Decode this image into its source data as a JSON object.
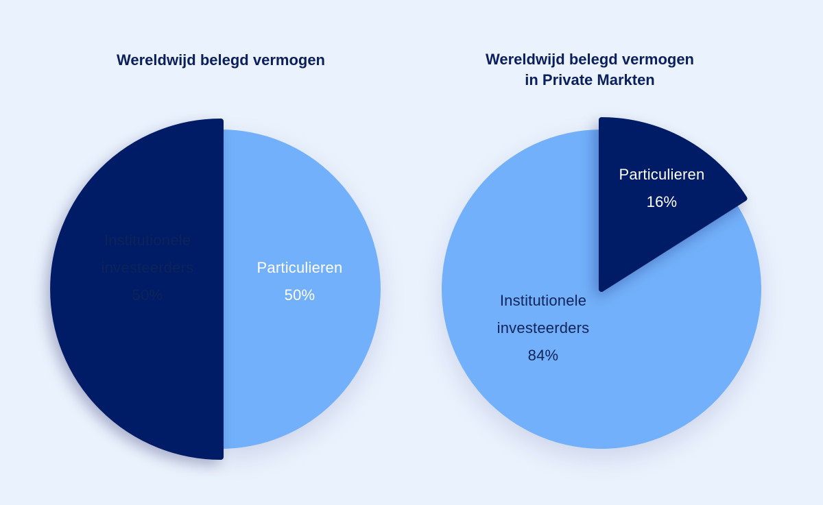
{
  "colors": {
    "background": "#eaf2fe",
    "title": "#0a1f5c",
    "institutioneel": "#72b0fb",
    "particulier": "#001d66",
    "label_dark": "#0d2458",
    "label_light": "#ffffff"
  },
  "chart_data": [
    {
      "type": "pie",
      "title": "Wereldwijd belegd vermogen",
      "title_lines": [
        "Wereldwijd belegd vermogen"
      ],
      "slices": [
        {
          "label_lines": [
            "Institutionele",
            "investeerders"
          ],
          "value_label": "50%",
          "value": 50,
          "color": "#72b0fb",
          "exploded": false
        },
        {
          "label_lines": [
            "Particulieren"
          ],
          "value_label": "50%",
          "value": 50,
          "color": "#001d66",
          "exploded": true
        }
      ]
    },
    {
      "type": "pie",
      "title": "Wereldwijd belegd vermogen in Private Markten",
      "title_lines": [
        "Wereldwijd belegd vermogen",
        "in Private Markten"
      ],
      "slices": [
        {
          "label_lines": [
            "Institutionele",
            "investeerders"
          ],
          "value_label": "84%",
          "value": 84,
          "color": "#72b0fb",
          "exploded": false
        },
        {
          "label_lines": [
            "Particulieren"
          ],
          "value_label": "16%",
          "value": 16,
          "color": "#001d66",
          "exploded": true
        }
      ]
    }
  ]
}
